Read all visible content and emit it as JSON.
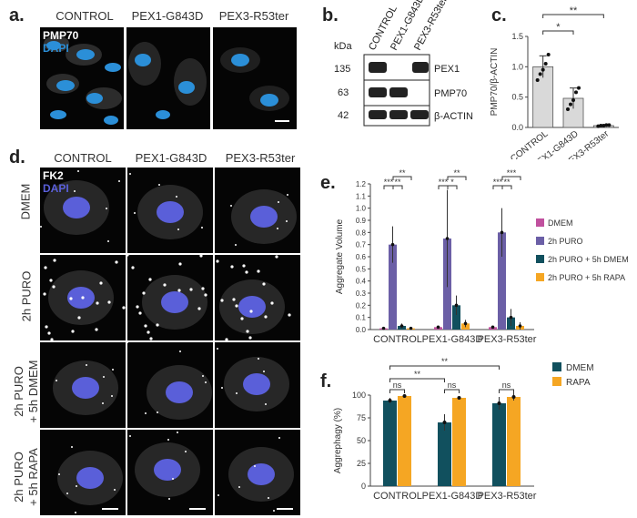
{
  "panel_labels": {
    "a": "a.",
    "b": "b.",
    "c": "c.",
    "d": "d.",
    "e": "e.",
    "f": "f."
  },
  "conditions": [
    "CONTROL",
    "PEX1-G843D",
    "PEX3-R53ter"
  ],
  "panel_a": {
    "stain_top": "PMP70",
    "stain_bottom": "DAPI"
  },
  "panel_b": {
    "kda_label": "kDa",
    "bands": [
      {
        "kda": "135",
        "protein": "PEX1"
      },
      {
        "kda": "63",
        "protein": "PMP70"
      },
      {
        "kda": "42",
        "protein": "β-ACTIN"
      }
    ]
  },
  "panel_d": {
    "stain_top": "FK2",
    "stain_bottom": "DAPI",
    "rows": [
      "DMEM",
      "2h PURO",
      "2h PURO\n+ 5h DMEM",
      "2h PURO\n+ 5h RAPA"
    ]
  },
  "colors": {
    "gray_bar": "#d9d9d9",
    "dmem_pink": "#c0509e",
    "puro_purple": "#6b5fa6",
    "puro_dmem_teal": "#11505e",
    "puro_rapa_orange": "#f5a623",
    "nucleus_blue": "#2b8fd8",
    "nucleus_violet": "#5a5fd9"
  },
  "chart_data": [
    {
      "id": "c",
      "type": "bar",
      "categories": [
        "CONTROL",
        "PEX1-G843D",
        "PEX3-R53ter"
      ],
      "values": [
        1.0,
        0.48,
        0.03
      ],
      "errors": [
        0.18,
        0.17,
        0.01
      ],
      "points": [
        [
          0.78,
          0.88,
          0.95,
          1.05,
          1.2
        ],
        [
          0.3,
          0.38,
          0.45,
          0.58,
          0.65
        ],
        [
          0.02,
          0.03,
          0.03,
          0.04,
          0.04
        ]
      ],
      "ylabel": "PMP70/β-ACTIN",
      "ylim": [
        0,
        1.5
      ],
      "yticks": [
        "0.0",
        "0.5",
        "1.0",
        "1.5"
      ],
      "significance": [
        {
          "from": 0,
          "to": 1,
          "label": "*"
        },
        {
          "from": 0,
          "to": 2,
          "label": "**"
        }
      ]
    },
    {
      "id": "e",
      "type": "bar",
      "categories": [
        "CONTROL",
        "PEX1-G843D",
        "PEX3-R53ter"
      ],
      "series": [
        {
          "name": "DMEM",
          "values": [
            0.01,
            0.02,
            0.02
          ],
          "errors": [
            0.005,
            0.01,
            0.01
          ]
        },
        {
          "name": "2h PURO",
          "values": [
            0.7,
            0.75,
            0.8
          ],
          "errors": [
            0.15,
            0.4,
            0.2
          ]
        },
        {
          "name": "2h PURO + 5h DMEM",
          "values": [
            0.03,
            0.2,
            0.1
          ],
          "errors": [
            0.02,
            0.08,
            0.07
          ]
        },
        {
          "name": "2h PURO + 5h RAPA",
          "values": [
            0.01,
            0.05,
            0.03
          ],
          "errors": [
            0.005,
            0.03,
            0.03
          ]
        }
      ],
      "ylabel": "Aggregate  Volume",
      "ylim": [
        0,
        1.2
      ],
      "yticks": [
        "0.0",
        "0.1",
        "0.2",
        "0.3",
        "0.4",
        "0.5",
        "0.6",
        "0.7",
        "0.8",
        "0.9",
        "1.0",
        "1.1",
        "1.2"
      ],
      "significance_labels": [
        "***",
        "**",
        "**",
        "***",
        "*",
        "**",
        "***",
        "**",
        "***"
      ],
      "legend": "right"
    },
    {
      "id": "f",
      "type": "bar",
      "categories": [
        "CONTROL",
        "PEX1-G843D",
        "PEX3-R53ter"
      ],
      "series": [
        {
          "name": "DMEM",
          "values": [
            94,
            70,
            91
          ],
          "errors": [
            3,
            9,
            7
          ]
        },
        {
          "name": "RAPA",
          "values": [
            99,
            97,
            98
          ],
          "errors": [
            2,
            1,
            4
          ]
        }
      ],
      "ylabel": "Aggrephagy  (%)",
      "ylim": [
        0,
        100
      ],
      "yticks": [
        "0",
        "25",
        "50",
        "75",
        "100"
      ],
      "significance_labels": [
        "ns",
        "**",
        "ns",
        "**",
        "ns"
      ],
      "legend": "top-right"
    }
  ]
}
